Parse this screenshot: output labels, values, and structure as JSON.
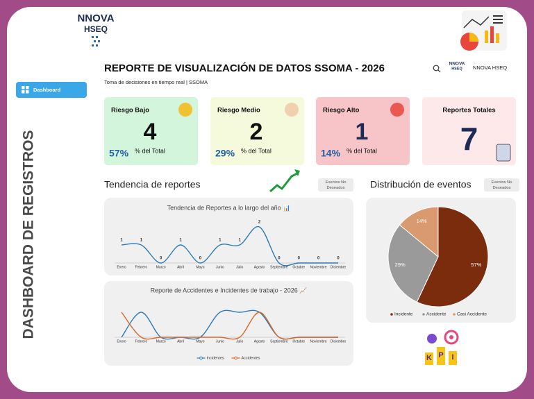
{
  "brand": {
    "line1": "NNOVA",
    "line2": "HSEQ"
  },
  "sidebar": {
    "vertical_title": "DASHBOARD DE REGISTROS",
    "nav": [
      "Dashboard"
    ]
  },
  "header": {
    "title": "REPORTE DE VISUALIZACIÓN DE DATOS SSOMA - 2026",
    "subtitle": "Toma de decisiones en tiempo real | SSOMA",
    "user_logo_line1": "NNOVA",
    "user_logo_line2": "HSEQ",
    "user": "NNOVA HSEQ"
  },
  "cards": [
    {
      "label": "Riesgo Bajo",
      "value": 4,
      "percent": "57%",
      "percent_text": "% del Total"
    },
    {
      "label": "Riesgo Medio",
      "value": 2,
      "percent": "29%",
      "percent_text": "% del Total"
    },
    {
      "label": "Riesgo Alto",
      "value": 1,
      "percent": "14%",
      "percent_text": "% del Total"
    },
    {
      "label": "Reportes Totales",
      "value": 7
    }
  ],
  "sections": [
    {
      "title": "Tendencia de reportes",
      "badge": [
        "Eventos No",
        "Deseados"
      ]
    },
    {
      "title": "Distribución de eventos",
      "badge": [
        "Eventos No",
        "Deseados"
      ]
    }
  ],
  "chart_data": [
    {
      "type": "line",
      "title": "Tendencia de Reportes a lo largo del año 📊",
      "categories": [
        "Enero",
        "Febrero",
        "Marzo",
        "Abril",
        "Mayo",
        "Junio",
        "Julio",
        "Agosto",
        "Septiembre",
        "Octubre",
        "Noviembre",
        "Diciembre"
      ],
      "values": [
        1,
        1,
        0,
        1,
        0,
        1,
        1,
        2,
        0,
        0,
        0,
        0
      ],
      "color": "#2a7ab8",
      "data_labels": true
    },
    {
      "type": "line",
      "title": "Reporte de Accidentes e Incidentes de trabajo - 2026 📈",
      "categories": [
        "Enero",
        "Febrero",
        "Marzo",
        "Abril",
        "Mayo",
        "Junio",
        "Julio",
        "Agosto",
        "Septiembre",
        "Octubre",
        "Noviembre",
        "Diciembre"
      ],
      "series": [
        {
          "name": "Incidentes",
          "color": "#2a7ab8",
          "values": [
            0,
            1,
            0,
            0,
            0,
            1,
            1,
            1,
            0,
            0,
            0,
            0
          ]
        },
        {
          "name": "Accidentes",
          "color": "#d9662b",
          "values": [
            1,
            0,
            0,
            0,
            0,
            0,
            0,
            1,
            0,
            0,
            0,
            0
          ]
        }
      ],
      "legend": "bottom"
    },
    {
      "type": "pie",
      "categories": [
        "Incidente",
        "Accidente",
        "Casi Accidente"
      ],
      "values": [
        57,
        29,
        14
      ],
      "value_labels": [
        "57%",
        "29%",
        "14%"
      ],
      "colors": [
        "#7a2c0c",
        "#9a9a9a",
        "#d89a6e"
      ],
      "legend": "bottom"
    }
  ]
}
